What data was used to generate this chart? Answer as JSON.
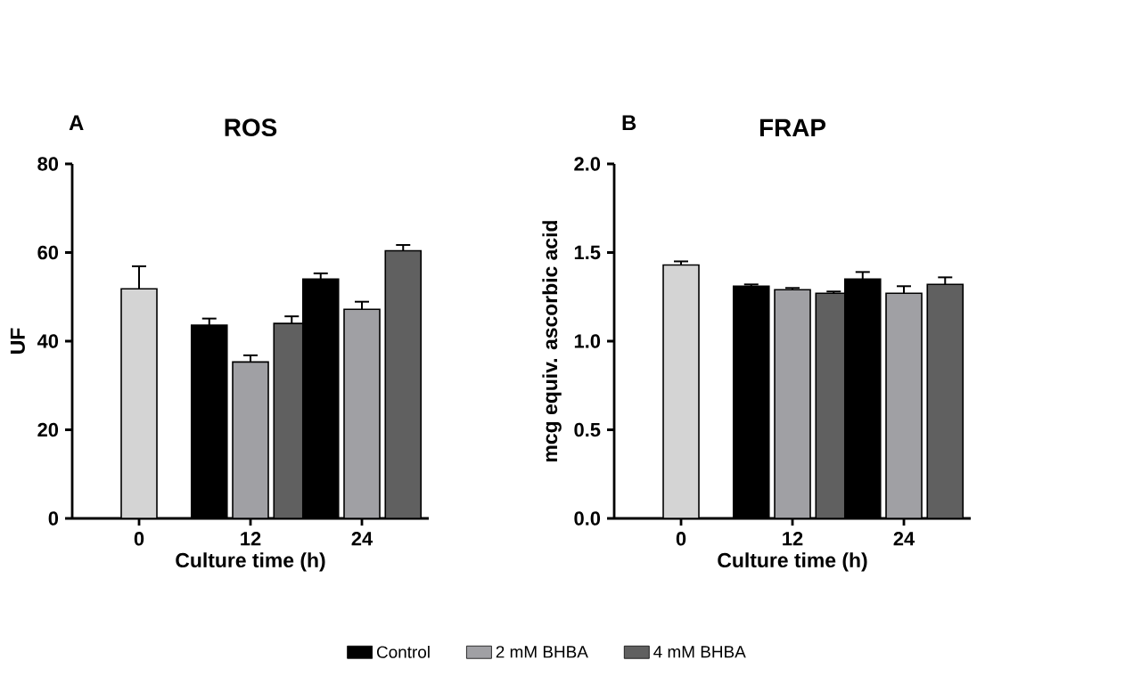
{
  "chart_data": [
    {
      "type": "bar",
      "title": "ROS",
      "annotations": [
        "A"
      ],
      "xlabel": "Culture time (h)",
      "ylabel": "UF",
      "categories": [
        "0",
        "12",
        "24"
      ],
      "ylim": [
        0,
        80
      ],
      "yticks": [
        0,
        20,
        40,
        60,
        80
      ],
      "legend": "bottom",
      "series": [
        {
          "color": "#d4d4d4",
          "values": [
            51.8,
            null,
            null
          ],
          "errors": [
            5.1,
            null,
            null
          ]
        },
        {
          "name": "Control",
          "color": "#000000",
          "values": [
            null,
            43.6,
            54.0
          ],
          "errors": [
            null,
            1.5,
            1.3
          ]
        },
        {
          "name": "2 mM BHBA",
          "color": "#a0a0a4",
          "values": [
            null,
            35.3,
            47.2
          ],
          "errors": [
            null,
            1.5,
            1.7
          ]
        },
        {
          "name": "4 mM BHBA",
          "color": "#606060",
          "values": [
            null,
            44.0,
            60.4
          ],
          "errors": [
            null,
            1.6,
            1.3
          ]
        }
      ]
    },
    {
      "type": "bar",
      "title": "FRAP",
      "annotations": [
        "B"
      ],
      "xlabel": "Culture time (h)",
      "ylabel": "mcg equiv. ascorbic acid",
      "categories": [
        "0",
        "12",
        "24"
      ],
      "ylim": [
        0,
        2.0
      ],
      "yticks": [
        {
          "value": 0,
          "label": "0.0"
        },
        {
          "value": 0.5,
          "label": "0.5"
        },
        {
          "value": 1,
          "label": "1.0"
        },
        {
          "value": 1.5,
          "label": "1.5"
        },
        {
          "value": 2,
          "label": "2.0"
        }
      ],
      "series": [
        {
          "color": "#d4d4d4",
          "values": [
            1.43,
            null,
            null
          ],
          "errors": [
            0.02,
            null,
            null
          ]
        },
        {
          "color": "#000000",
          "values": [
            null,
            1.31,
            1.35
          ],
          "errors": [
            null,
            0.01,
            0.04
          ]
        },
        {
          "color": "#a0a0a4",
          "values": [
            null,
            1.29,
            1.27
          ],
          "errors": [
            null,
            0.01,
            0.04
          ]
        },
        {
          "color": "#606060",
          "values": [
            null,
            1.27,
            1.32
          ],
          "errors": [
            null,
            0.01,
            0.04
          ]
        }
      ]
    }
  ]
}
